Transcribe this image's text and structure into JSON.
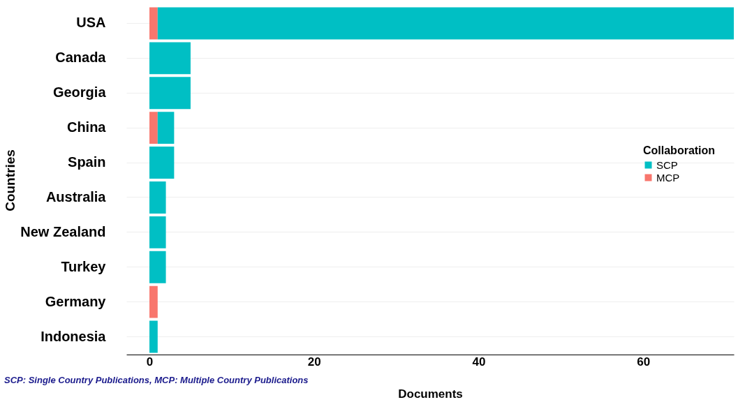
{
  "chart_data": {
    "type": "bar",
    "orientation": "horizontal",
    "stacked": true,
    "categories": [
      "USA",
      "Canada",
      "Georgia",
      "China",
      "Spain",
      "Australia",
      "New Zealand",
      "Turkey",
      "Germany",
      "Indonesia"
    ],
    "series": [
      {
        "name": "MCP",
        "color": "#f8766d",
        "values": [
          1,
          0,
          0,
          1,
          0,
          0,
          0,
          0,
          1,
          0
        ]
      },
      {
        "name": "SCP",
        "color": "#00bfc4",
        "values": [
          70,
          5,
          5,
          2,
          3,
          2,
          2,
          2,
          0,
          1
        ]
      }
    ],
    "xlim": [
      -2.8,
      71
    ],
    "xticks": [
      0,
      20,
      40,
      60
    ],
    "xlabel": "Documents",
    "ylabel": "Countries",
    "legend_title": "Collaboration",
    "legend": "right",
    "grid": "y",
    "annotations": [
      "SCP: Single Country Publications, MCP: Multiple Country Publications"
    ]
  }
}
